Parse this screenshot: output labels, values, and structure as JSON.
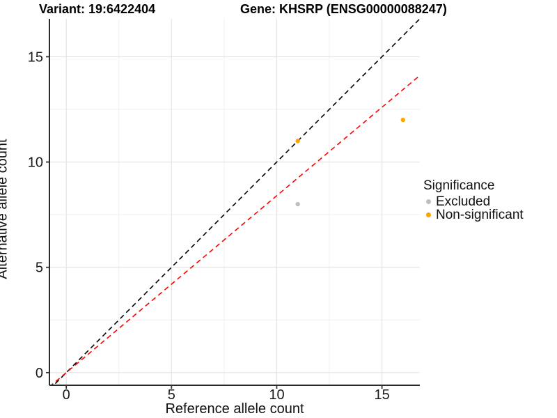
{
  "titles": {
    "variant": "Variant: 19:6422404",
    "gene": "Gene: KHSRP (ENSG00000088247)"
  },
  "chart_data": {
    "type": "scatter",
    "title_left": "Variant: 19:6422404",
    "title_right": "Gene: KHSRP (ENSG00000088247)",
    "xlabel": "Reference allele count",
    "ylabel": "Alternative allele count",
    "xlim": [
      -0.8,
      16.8
    ],
    "ylim": [
      -0.6,
      16.8
    ],
    "xticks": [
      0,
      5,
      10,
      15
    ],
    "yticks": [
      0,
      5,
      10,
      15
    ],
    "minor_xticks": [
      2.5,
      7.5,
      12.5
    ],
    "minor_yticks": [
      2.5,
      7.5,
      12.5
    ],
    "grid": true,
    "series": [
      {
        "name": "Excluded",
        "color": "#BEBEBE",
        "points": [
          {
            "x": 11,
            "y": 8
          }
        ]
      },
      {
        "name": "Non-significant",
        "color": "#FFA500",
        "points": [
          {
            "x": 11,
            "y": 11
          },
          {
            "x": 16,
            "y": 12
          }
        ]
      }
    ],
    "lines": [
      {
        "name": "identity-line",
        "color": "#000000",
        "dashed": true,
        "slope": 1,
        "intercept": 0
      },
      {
        "name": "expected-ratio-line",
        "color": "#FF0000",
        "dashed": true,
        "slope": 0.84,
        "intercept": 0
      }
    ],
    "legend": {
      "title": "Significance",
      "position": "right",
      "items": [
        {
          "label": "Excluded",
          "color": "#BEBEBE"
        },
        {
          "label": "Non-significant",
          "color": "#FFA500"
        }
      ]
    },
    "colors": {
      "grid_major": "#E3E3E3",
      "grid_minor": "#EFEFEF",
      "axis_line": "#2B2B2B",
      "tick_text": "#1A1A1A"
    }
  }
}
